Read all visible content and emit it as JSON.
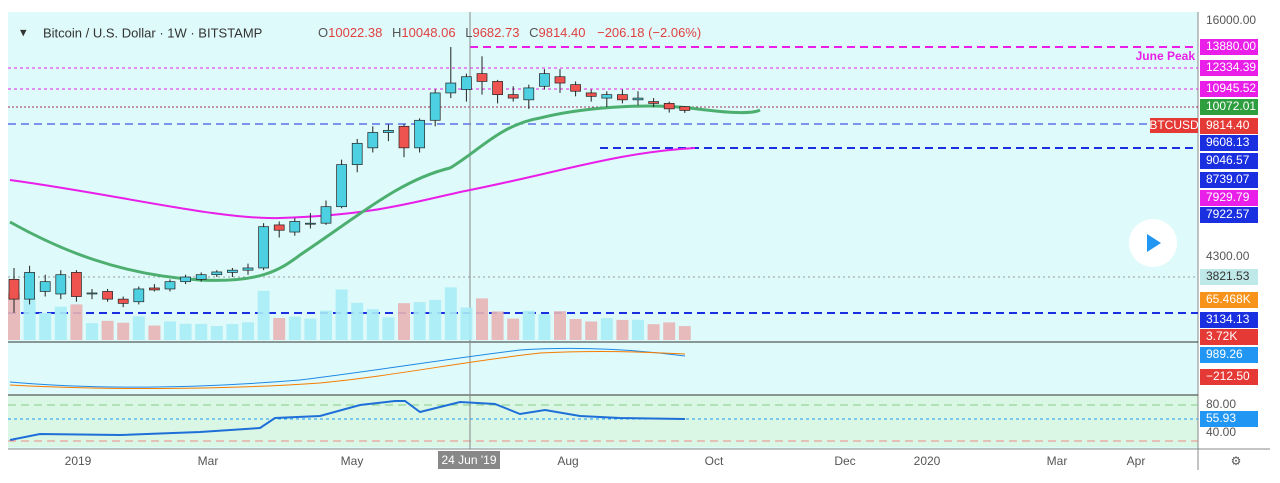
{
  "header": {
    "symbol": "Bitcoin / U.S. Dollar · 1W · BITSTAMP",
    "o_label": "O",
    "o": "10022.38",
    "h_label": "H",
    "h": "10048.06",
    "l_label": "L",
    "l": "9682.73",
    "c_label": "C",
    "c": "9814.40",
    "change": "−206.18 (−2.06%)"
  },
  "annotation": "June Peak",
  "ticker_tag": "BTCUSD",
  "crosshair_date": "24 Jun '19",
  "price_axis": [
    {
      "value": 16000,
      "label": "16000.00",
      "bg": "none",
      "fg": "#555"
    },
    {
      "value": 13880,
      "label": "13880.00",
      "bg": "#e91ee9",
      "fg": "#fff"
    },
    {
      "value": 12334.39,
      "label": "12334.39",
      "bg": "#e91ee9",
      "fg": "#fff"
    },
    {
      "value": 10945.52,
      "label": "10945.52",
      "bg": "#e91ee9",
      "fg": "#fff"
    },
    {
      "value": 10072.01,
      "label": "10072.01",
      "bg": "#2e9e3e",
      "fg": "#fff"
    },
    {
      "value": 9814.4,
      "label": "9814.40",
      "bg": "#e53935",
      "fg": "#fff"
    },
    {
      "value": 9608.13,
      "label": "9608.13",
      "bg": "#1a2fe0",
      "fg": "#fff"
    },
    {
      "value": 9046.57,
      "label": "9046.57",
      "bg": "#1a2fe0",
      "fg": "#fff"
    },
    {
      "value": 8739.07,
      "label": "8739.07",
      "bg": "#1a2fe0",
      "fg": "#fff"
    },
    {
      "value": 7929.79,
      "label": "7929.79",
      "bg": "#e91ee9",
      "fg": "#fff"
    },
    {
      "value": 7922.57,
      "label": "7922.57",
      "bg": "#1a2fe0",
      "fg": "#fff"
    },
    {
      "value": 4300,
      "label": "4300.00",
      "bg": "none",
      "fg": "#555"
    },
    {
      "value": 3821.53,
      "label": "3821.53",
      "bg": "#bfe8e8",
      "fg": "#333"
    },
    {
      "value": 65.468,
      "label": "65.468K",
      "bg": "#f7931a",
      "fg": "#fff"
    },
    {
      "value": 3134.13,
      "label": "3134.13",
      "bg": "#1a2fe0",
      "fg": "#fff"
    },
    {
      "value": 3.72,
      "label": "3.72K",
      "bg": "#e53935",
      "fg": "#fff"
    },
    {
      "value": 989.26,
      "label": "989.26",
      "bg": "#2196f3",
      "fg": "#fff"
    },
    {
      "value": -212.5,
      "label": "−212.50",
      "bg": "#e53935",
      "fg": "#fff"
    },
    {
      "value": 80,
      "label": "80.00",
      "bg": "none",
      "fg": "#555"
    },
    {
      "value": 55.93,
      "label": "55.93",
      "bg": "#2196f3",
      "fg": "#fff"
    },
    {
      "value": 40,
      "label": "40.00",
      "bg": "none",
      "fg": "#555"
    }
  ],
  "time_axis": [
    "2019",
    "Mar",
    "May",
    "Aug",
    "Oct",
    "Dec",
    "2020",
    "Mar",
    "Apr"
  ],
  "candles": [
    [
      3900,
      4150,
      3250,
      3500
    ],
    [
      3500,
      4200,
      3400,
      4050
    ],
    [
      3650,
      4000,
      3550,
      3850
    ],
    [
      3600,
      4100,
      3500,
      4000
    ],
    [
      4050,
      4100,
      3450,
      3550
    ],
    [
      3600,
      3700,
      3500,
      3620
    ],
    [
      3650,
      3700,
      3450,
      3500
    ],
    [
      3500,
      3550,
      3350,
      3420
    ],
    [
      3450,
      3750,
      3400,
      3700
    ],
    [
      3720,
      3800,
      3650,
      3680
    ],
    [
      3700,
      3900,
      3650,
      3850
    ],
    [
      3850,
      4000,
      3800,
      3950
    ],
    [
      3900,
      4050,
      3850,
      4000
    ],
    [
      4000,
      4100,
      3950,
      4060
    ],
    [
      4050,
      4150,
      3950,
      4100
    ],
    [
      4100,
      4250,
      4000,
      4150
    ],
    [
      4150,
      5300,
      4100,
      5200
    ],
    [
      5250,
      5350,
      4900,
      5100
    ],
    [
      5050,
      5450,
      4950,
      5350
    ],
    [
      5300,
      5600,
      5150,
      5300
    ],
    [
      5300,
      6000,
      5250,
      5800
    ],
    [
      5800,
      7500,
      5750,
      7300
    ],
    [
      7300,
      8400,
      7000,
      8200
    ],
    [
      8000,
      9000,
      7800,
      8700
    ],
    [
      8700,
      9100,
      8300,
      8800
    ],
    [
      9000,
      9100,
      7600,
      8000
    ],
    [
      8000,
      9400,
      7800,
      9300
    ],
    [
      9300,
      11000,
      9000,
      10800
    ],
    [
      10800,
      13880,
      10500,
      11400
    ],
    [
      11000,
      12000,
      10300,
      11800
    ],
    [
      12000,
      13200,
      10700,
      11500
    ],
    [
      11500,
      11600,
      10200,
      10700
    ],
    [
      10700,
      11200,
      10300,
      10500
    ],
    [
      10400,
      11300,
      9900,
      11100
    ],
    [
      11200,
      12300,
      11000,
      12000
    ],
    [
      11800,
      12300,
      10800,
      11400
    ],
    [
      11300,
      11500,
      10600,
      10900
    ],
    [
      10800,
      11000,
      10300,
      10600
    ],
    [
      10500,
      10900,
      10000,
      10700
    ],
    [
      10700,
      11000,
      10200,
      10400
    ],
    [
      10400,
      10900,
      10100,
      10500
    ],
    [
      10300,
      10500,
      10000,
      10200
    ],
    [
      10200,
      10300,
      9700,
      9900
    ],
    [
      10022.38,
      10048.06,
      9682.73,
      9814.4
    ]
  ]
}
